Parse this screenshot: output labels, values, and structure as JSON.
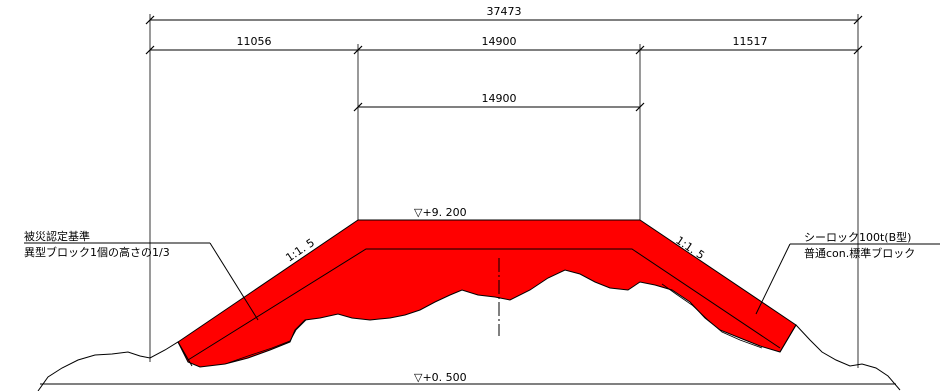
{
  "dimensions": {
    "total": "37473",
    "left": "11056",
    "center": "14900",
    "right": "11517",
    "crest": "14900"
  },
  "levels": {
    "crest": "▽+9. 200",
    "base": "▽+0. 500"
  },
  "slopes": {
    "left": "1:1. 5",
    "right": "1:1. 5"
  },
  "notes": {
    "left_line1": "被災認定基準",
    "left_line2": "異型ブロック1個の高さの1/3",
    "right_line1": "シーロック100t(B型)",
    "right_line2": "普通con.標準ブロック"
  },
  "colors": {
    "armor": "#ff0000",
    "line": "#000000"
  }
}
